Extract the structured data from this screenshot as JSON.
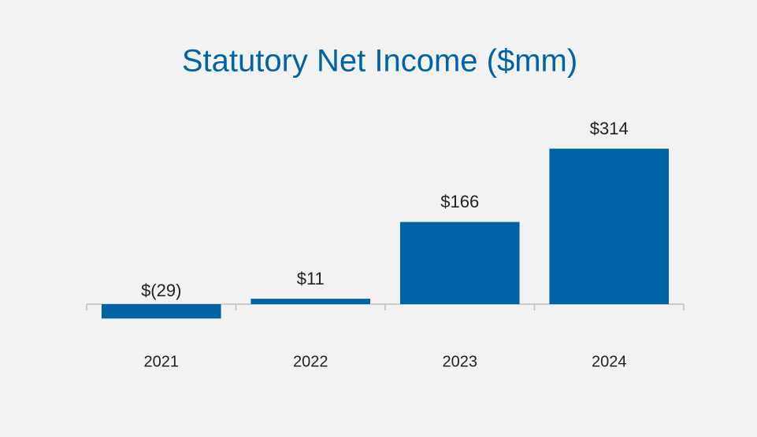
{
  "chart_data": {
    "type": "bar",
    "title": "Statutory Net Income ($mm)",
    "categories": [
      "2021",
      "2022",
      "2023",
      "2024"
    ],
    "values": [
      -29,
      11,
      166,
      314
    ],
    "value_labels": [
      "$(29)",
      "$11",
      "$166",
      "$314"
    ],
    "color": "#0063a6"
  }
}
